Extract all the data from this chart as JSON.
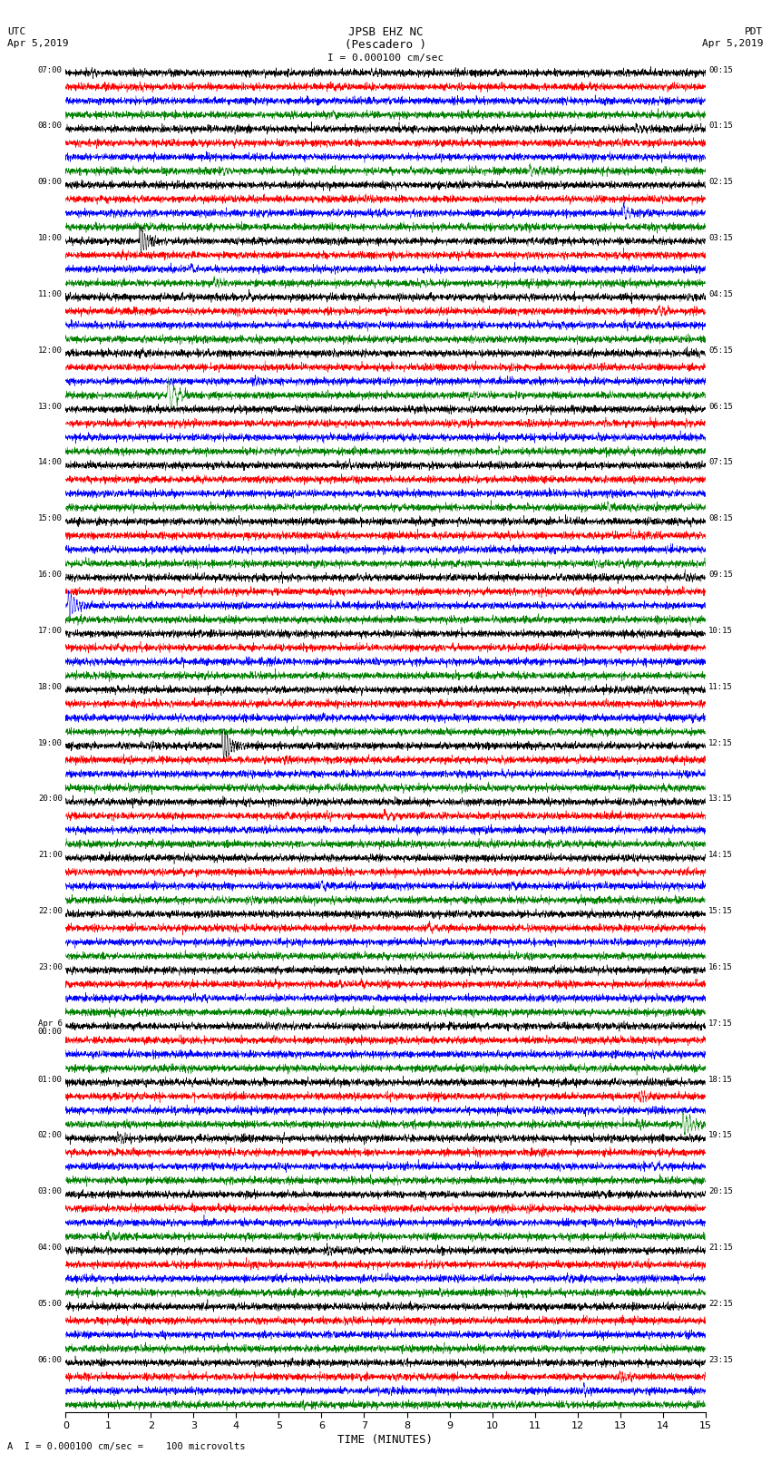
{
  "title_line1": "JPSB EHZ NC",
  "title_line2": "(Pescadero )",
  "scale_label": "I = 0.000100 cm/sec",
  "utc_label": "UTC",
  "utc_date": "Apr 5,2019",
  "pdt_label": "PDT",
  "pdt_date": "Apr 5,2019",
  "xlabel": "TIME (MINUTES)",
  "footer": "A  I = 0.000100 cm/sec =    100 microvolts",
  "xlim": [
    0,
    15
  ],
  "xticks": [
    0,
    1,
    2,
    3,
    4,
    5,
    6,
    7,
    8,
    9,
    10,
    11,
    12,
    13,
    14,
    15
  ],
  "bg_color": "#ffffff",
  "trace_colors": [
    "black",
    "red",
    "blue",
    "green"
  ],
  "left_labels": [
    "07:00",
    "08:00",
    "09:00",
    "10:00",
    "11:00",
    "12:00",
    "13:00",
    "14:00",
    "15:00",
    "16:00",
    "17:00",
    "18:00",
    "19:00",
    "20:00",
    "21:00",
    "22:00",
    "23:00",
    "Apr 6",
    "01:00",
    "02:00",
    "03:00",
    "04:00",
    "05:00",
    "06:00"
  ],
  "left_labels2": [
    "",
    "",
    "",
    "",
    "",
    "",
    "",
    "",
    "",
    "",
    "",
    "",
    "",
    "",
    "",
    "",
    "",
    "00:00",
    "",
    "",
    "",
    "",
    "",
    ""
  ],
  "right_labels": [
    "00:15",
    "01:15",
    "02:15",
    "03:15",
    "04:15",
    "05:15",
    "06:15",
    "07:15",
    "08:15",
    "09:15",
    "10:15",
    "11:15",
    "12:15",
    "13:15",
    "14:15",
    "15:15",
    "16:15",
    "17:15",
    "18:15",
    "19:15",
    "20:15",
    "21:15",
    "22:15",
    "23:15"
  ],
  "num_rows": 24,
  "traces_per_row": 4,
  "noise_amplitude": 0.12,
  "spike_amplitude": 0.35,
  "noise_seed": 42
}
